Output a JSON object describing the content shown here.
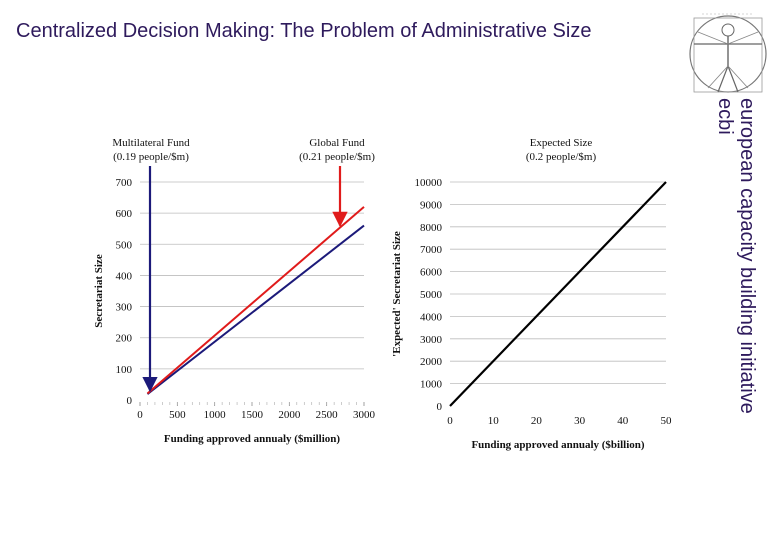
{
  "slide_title": "Centralized Decision Making: The Problem of Administrative Size",
  "side_text": {
    "line1": "european capacity building initiative",
    "line2": "ecbi"
  },
  "panels": {
    "multilateral": {
      "name": "Multilateral Fund",
      "rate": "(0.19 people/$m)"
    },
    "global": {
      "name": "Global Fund",
      "rate": "(0.21 people/$m)"
    },
    "expected": {
      "name": "Expected Size",
      "rate": "(0.2 people/$m)"
    }
  },
  "colors": {
    "title": "#2e1a5c",
    "red": "#e01b1b",
    "navy": "#1c1a7a",
    "black": "#000000",
    "grid": "#bdbdbd"
  },
  "chart_data": [
    {
      "type": "line",
      "xlabel": "Funding approved annualy ($million)",
      "ylabel": "Secretariat Size",
      "xlim": [
        0,
        3000
      ],
      "ylim": [
        0,
        700
      ],
      "xticks": [
        0,
        500,
        1000,
        1500,
        2000,
        2500,
        3000
      ],
      "yticks": [
        0,
        100,
        200,
        300,
        400,
        500,
        600,
        700
      ],
      "grid": "horizontal",
      "series": [
        {
          "label": "Multilateral Fund",
          "color": "#1c1a7a",
          "x": [
            100,
            3000
          ],
          "y": [
            19,
            560
          ]
        },
        {
          "label": "Global Fund",
          "color": "#e01b1b",
          "x": [
            100,
            3000
          ],
          "y": [
            21,
            620
          ]
        }
      ],
      "annotations": [
        {
          "label": "Multilateral Fund (0.19 people/$m)",
          "target_x": 150,
          "target_y": 30,
          "color": "#1c1a7a"
        },
        {
          "label": "Global Fund (0.21 people/$m)",
          "target_x": 2700,
          "target_y": 560,
          "color": "#e01b1b"
        }
      ]
    },
    {
      "type": "line",
      "title": "Expected Size (0.2 people/$m)",
      "xlabel": "Funding approved annualy ($billion)",
      "ylabel": "'Expected' Secretariat Size",
      "xlim": [
        0,
        50
      ],
      "ylim": [
        0,
        10000
      ],
      "xticks": [
        0,
        10,
        20,
        30,
        40,
        50
      ],
      "yticks": [
        0,
        1000,
        2000,
        3000,
        4000,
        5000,
        6000,
        7000,
        8000,
        9000,
        10000
      ],
      "grid": "horizontal",
      "series": [
        {
          "label": "Expected Size",
          "color": "#000000",
          "x": [
            0,
            50
          ],
          "y": [
            0,
            10000
          ]
        }
      ]
    }
  ]
}
